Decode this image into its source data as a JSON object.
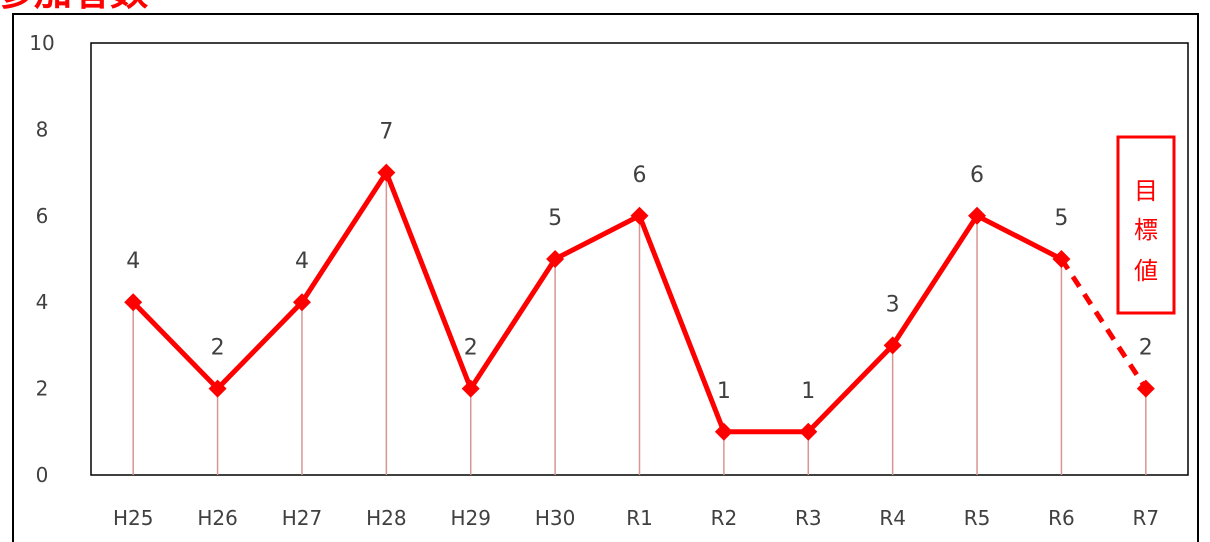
{
  "title": "参加者数",
  "colors": {
    "series": "#ff0000",
    "drop_line": "#d99594",
    "axis": "#000000",
    "text": "#404040",
    "title": "#ff0000",
    "target": "#ff0000"
  },
  "target_label": "目標値",
  "chart_data": {
    "type": "line",
    "title": "参加者数",
    "xlabel": "",
    "ylabel": "",
    "categories": [
      "H25",
      "H26",
      "H27",
      "H28",
      "H29",
      "H30",
      "R1",
      "R2",
      "R3",
      "R4",
      "R5",
      "R6",
      "R7"
    ],
    "series": [
      {
        "values": [
          4,
          2,
          4,
          7,
          2,
          5,
          6,
          1,
          1,
          3,
          6,
          5,
          2
        ],
        "data_labels": [
          "4",
          "2",
          "4",
          "7",
          "2",
          "5",
          "6",
          "1",
          "1",
          "3",
          "6",
          "5",
          "2"
        ]
      }
    ],
    "ylim": [
      0,
      10
    ],
    "yticks": [
      0,
      2,
      4,
      6,
      8,
      10
    ],
    "grid": false,
    "legend": "none",
    "target_category": "R7",
    "target_value": 2,
    "target_line_style": "dashed"
  }
}
